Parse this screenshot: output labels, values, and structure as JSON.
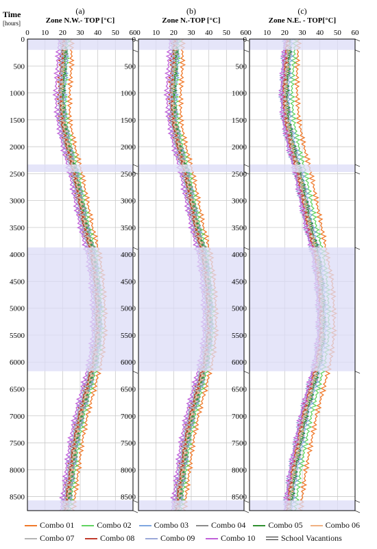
{
  "time_label": "Time",
  "time_unit_label": "[hours]",
  "colors": {
    "vacation_fill": "#dcdcf7",
    "grid": "#c8c8c8",
    "axis": "#000000"
  },
  "legend": {
    "school_vacations_label": "School Vacantions"
  },
  "chart_data": [
    {
      "type": "line",
      "panel_label": "(a)",
      "title": "Zone N.W.- TOP [°C]",
      "xlim": [
        0,
        60
      ],
      "x_ticks": [
        "0",
        "10",
        "20",
        "30",
        "40",
        "50",
        "60"
      ],
      "ylim": [
        0,
        8760
      ],
      "y_ticks": [
        "0",
        "500",
        "1000",
        "1500",
        "2000",
        "2500",
        "3000",
        "3500",
        "4000",
        "4500",
        "5000",
        "5500",
        "6000",
        "6500",
        "7000",
        "7500",
        "8000",
        "8500"
      ],
      "y_axis_inverted": true,
      "grid": true,
      "school_vacations": [
        [
          0,
          200
        ],
        [
          2330,
          2470
        ],
        [
          3870,
          6170
        ],
        [
          8570,
          8760
        ]
      ],
      "time_hours": [
        0,
        500,
        1000,
        1500,
        2000,
        2500,
        3000,
        3500,
        4000,
        4500,
        5000,
        5500,
        6000,
        6500,
        7000,
        7500,
        8000,
        8500,
        8760
      ],
      "series": [
        {
          "name": "Combo 01",
          "color": "#f07828",
          "values": [
            25,
            25,
            24,
            24,
            27,
            31,
            34,
            37,
            41,
            43,
            44,
            44,
            42,
            38,
            34,
            31,
            29,
            27,
            26
          ]
        },
        {
          "name": "Combo 02",
          "color": "#5fd35f",
          "values": [
            23,
            22,
            21,
            22,
            25,
            29,
            32,
            35,
            39,
            41,
            42,
            42,
            40,
            36,
            32,
            29,
            27,
            25,
            24
          ]
        },
        {
          "name": "Combo 03",
          "color": "#7ea6e0",
          "values": [
            22,
            22,
            21,
            21,
            24,
            28,
            31,
            34,
            38,
            40,
            41,
            41,
            39,
            35,
            31,
            28,
            26,
            24,
            23
          ]
        },
        {
          "name": "Combo 04",
          "color": "#8a8a8a",
          "values": [
            22,
            21,
            20,
            21,
            24,
            28,
            31,
            34,
            38,
            40,
            41,
            41,
            39,
            35,
            31,
            28,
            26,
            24,
            23
          ]
        },
        {
          "name": "Combo 05",
          "color": "#2f8f2f",
          "values": [
            21,
            21,
            20,
            20,
            23,
            27,
            30,
            33,
            37,
            39,
            40,
            40,
            38,
            34,
            30,
            27,
            25,
            23,
            22
          ]
        },
        {
          "name": "Combo 06",
          "color": "#f0b080",
          "values": [
            21,
            20,
            19,
            20,
            23,
            27,
            30,
            33,
            37,
            39,
            40,
            40,
            38,
            34,
            30,
            27,
            25,
            23,
            22
          ]
        },
        {
          "name": "Combo 07",
          "color": "#b4b4b4",
          "values": [
            20,
            20,
            19,
            19,
            22,
            26,
            29,
            32,
            36,
            38,
            39,
            39,
            37,
            33,
            29,
            26,
            24,
            22,
            21
          ]
        },
        {
          "name": "Combo 08",
          "color": "#c0392b",
          "values": [
            20,
            19,
            18,
            19,
            22,
            26,
            29,
            32,
            36,
            38,
            39,
            39,
            37,
            33,
            29,
            26,
            24,
            22,
            21
          ]
        },
        {
          "name": "Combo 09",
          "color": "#9aa8d8",
          "values": [
            19,
            19,
            18,
            18,
            21,
            25,
            28,
            31,
            35,
            37,
            38,
            38,
            36,
            32,
            28,
            25,
            23,
            21,
            20
          ]
        },
        {
          "name": "Combo 10",
          "color": "#c060d8",
          "values": [
            18,
            17,
            16,
            17,
            20,
            24,
            27,
            30,
            34,
            36,
            37,
            37,
            35,
            31,
            27,
            24,
            22,
            20,
            19
          ]
        }
      ]
    },
    {
      "type": "line",
      "panel_label": "(b)",
      "title": "Zone N.-TOP [°C]",
      "xlim": [
        0,
        60
      ],
      "x_ticks": [
        "0",
        "10",
        "20",
        "30",
        "40",
        "50",
        "60"
      ],
      "ylim": [
        0,
        8760
      ],
      "y_axis_inverted": true,
      "grid": true,
      "school_vacations": [
        [
          0,
          200
        ],
        [
          2330,
          2470
        ],
        [
          3870,
          6170
        ],
        [
          8570,
          8760
        ]
      ],
      "time_hours": [
        0,
        500,
        1000,
        1500,
        2000,
        2500,
        3000,
        3500,
        4000,
        4500,
        5000,
        5500,
        6000,
        6500,
        7000,
        7500,
        8000,
        8500,
        8760
      ],
      "series": [
        {
          "name": "Combo 01",
          "color": "#f07828",
          "values": [
            25,
            25,
            24,
            24,
            27,
            31,
            34,
            37,
            41,
            43,
            44,
            44,
            42,
            38,
            34,
            31,
            29,
            27,
            26
          ]
        },
        {
          "name": "Combo 02",
          "color": "#5fd35f",
          "values": [
            23,
            22,
            21,
            22,
            25,
            29,
            32,
            35,
            39,
            41,
            42,
            42,
            40,
            36,
            32,
            29,
            27,
            25,
            24
          ]
        },
        {
          "name": "Combo 03",
          "color": "#7ea6e0",
          "values": [
            22,
            22,
            21,
            21,
            24,
            28,
            31,
            34,
            38,
            40,
            41,
            41,
            39,
            35,
            31,
            28,
            26,
            24,
            23
          ]
        },
        {
          "name": "Combo 04",
          "color": "#8a8a8a",
          "values": [
            22,
            21,
            20,
            21,
            24,
            28,
            31,
            34,
            38,
            40,
            41,
            41,
            39,
            35,
            31,
            28,
            26,
            24,
            23
          ]
        },
        {
          "name": "Combo 05",
          "color": "#2f8f2f",
          "values": [
            21,
            21,
            20,
            20,
            23,
            27,
            30,
            33,
            37,
            39,
            40,
            40,
            38,
            34,
            30,
            27,
            25,
            23,
            22
          ]
        },
        {
          "name": "Combo 06",
          "color": "#f0b080",
          "values": [
            21,
            20,
            19,
            20,
            23,
            27,
            30,
            33,
            37,
            39,
            40,
            40,
            38,
            34,
            30,
            27,
            25,
            23,
            22
          ]
        },
        {
          "name": "Combo 07",
          "color": "#b4b4b4",
          "values": [
            20,
            20,
            19,
            19,
            22,
            26,
            29,
            32,
            36,
            38,
            39,
            39,
            37,
            33,
            29,
            26,
            24,
            22,
            21
          ]
        },
        {
          "name": "Combo 08",
          "color": "#c0392b",
          "values": [
            20,
            19,
            18,
            19,
            22,
            26,
            29,
            32,
            36,
            38,
            39,
            39,
            37,
            33,
            29,
            26,
            24,
            22,
            21
          ]
        },
        {
          "name": "Combo 09",
          "color": "#9aa8d8",
          "values": [
            19,
            19,
            18,
            18,
            21,
            25,
            28,
            31,
            35,
            37,
            38,
            38,
            36,
            32,
            28,
            25,
            23,
            21,
            20
          ]
        },
        {
          "name": "Combo 10",
          "color": "#c060d8",
          "values": [
            18,
            17,
            16,
            17,
            20,
            24,
            27,
            30,
            34,
            36,
            37,
            37,
            35,
            31,
            27,
            24,
            22,
            20,
            19
          ]
        }
      ]
    },
    {
      "type": "line",
      "panel_label": "(c)",
      "title": "Zone N.E. - TOP[°C]",
      "xlim": [
        0,
        60
      ],
      "x_ticks": [
        "0",
        "10",
        "20",
        "30",
        "40",
        "50",
        "60"
      ],
      "ylim": [
        0,
        8760
      ],
      "y_axis_inverted": true,
      "grid": true,
      "school_vacations": [
        [
          0,
          200
        ],
        [
          2330,
          2470
        ],
        [
          3870,
          6170
        ],
        [
          8570,
          8760
        ]
      ],
      "time_hours": [
        0,
        500,
        1000,
        1500,
        2000,
        2500,
        3000,
        3500,
        4000,
        4500,
        5000,
        5500,
        6000,
        6500,
        7000,
        7500,
        8000,
        8500,
        8760
      ],
      "series": [
        {
          "name": "Combo 01",
          "color": "#f07828",
          "values": [
            28,
            27,
            27,
            28,
            31,
            35,
            38,
            41,
            44,
            47,
            48,
            48,
            46,
            42,
            38,
            35,
            32,
            30,
            29
          ]
        },
        {
          "name": "Combo 02",
          "color": "#5fd35f",
          "values": [
            26,
            25,
            24,
            25,
            28,
            32,
            35,
            38,
            42,
            44,
            45,
            45,
            43,
            39,
            35,
            32,
            29,
            27,
            26
          ]
        },
        {
          "name": "Combo 03",
          "color": "#7ea6e0",
          "values": [
            24,
            23,
            22,
            23,
            26,
            30,
            33,
            36,
            40,
            42,
            43,
            43,
            41,
            37,
            33,
            30,
            27,
            25,
            24
          ]
        },
        {
          "name": "Combo 04",
          "color": "#8a8a8a",
          "values": [
            23,
            22,
            21,
            22,
            25,
            29,
            32,
            35,
            39,
            41,
            42,
            42,
            40,
            36,
            32,
            29,
            26,
            24,
            23
          ]
        },
        {
          "name": "Combo 05",
          "color": "#2f8f2f",
          "values": [
            23,
            22,
            21,
            22,
            25,
            29,
            32,
            35,
            39,
            41,
            42,
            42,
            40,
            36,
            32,
            29,
            26,
            24,
            23
          ]
        },
        {
          "name": "Combo 06",
          "color": "#f0b080",
          "values": [
            22,
            21,
            20,
            21,
            24,
            28,
            31,
            34,
            38,
            40,
            41,
            41,
            39,
            35,
            31,
            28,
            25,
            23,
            22
          ]
        },
        {
          "name": "Combo 07",
          "color": "#b4b4b4",
          "values": [
            22,
            21,
            20,
            21,
            24,
            28,
            31,
            34,
            38,
            40,
            41,
            41,
            39,
            35,
            31,
            28,
            25,
            23,
            22
          ]
        },
        {
          "name": "Combo 08",
          "color": "#c0392b",
          "values": [
            21,
            20,
            19,
            20,
            23,
            27,
            30,
            33,
            37,
            39,
            40,
            40,
            38,
            34,
            30,
            27,
            24,
            22,
            21
          ]
        },
        {
          "name": "Combo 09",
          "color": "#9aa8d8",
          "values": [
            20,
            19,
            18,
            19,
            22,
            26,
            29,
            32,
            36,
            38,
            39,
            39,
            37,
            33,
            29,
            26,
            23,
            21,
            20
          ]
        },
        {
          "name": "Combo 10",
          "color": "#c060d8",
          "values": [
            20,
            19,
            18,
            19,
            22,
            26,
            29,
            32,
            36,
            38,
            39,
            39,
            37,
            33,
            29,
            26,
            23,
            21,
            20
          ]
        }
      ]
    }
  ]
}
